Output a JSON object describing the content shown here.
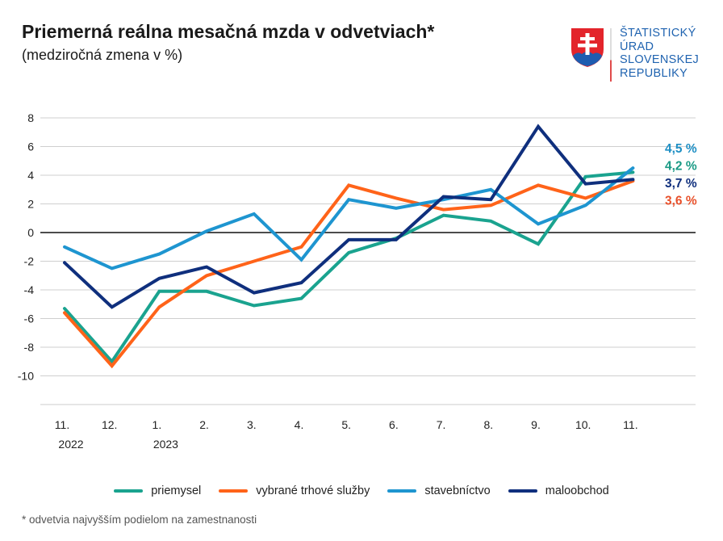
{
  "header": {
    "title": "Priemerná reálna mesačná mzda v odvetviach*",
    "subtitle": "(medziročná zmena v %)"
  },
  "logo": {
    "lines": [
      "ŠTATISTICKÝ",
      "ÚRAD",
      "SLOVENSKEJ",
      "REPUBLIKY"
    ]
  },
  "footnote": "* odvetvia najvyšším podielom na zamestnanosti",
  "chart_data": {
    "type": "line",
    "title": "Priemerná reálna mesačná mzda v odvetviach*",
    "ylabel": "medziročná zmena v %",
    "ylim": [
      -12,
      8
    ],
    "yticks": [
      8,
      6,
      4,
      2,
      0,
      -2,
      -4,
      -6,
      -8,
      -10
    ],
    "ytick_labels": [
      "8",
      "6",
      "4",
      "2",
      "0",
      "-2",
      "-4",
      "-6",
      "-8",
      "-10"
    ],
    "categories": [
      "11.",
      "12.",
      "1.",
      "2.",
      "3.",
      "4.",
      "5.",
      "6.",
      "7.",
      "8.",
      "9.",
      "10.",
      "11."
    ],
    "year_labels": [
      {
        "index": 0,
        "text": "2022"
      },
      {
        "index": 2,
        "text": "2023"
      }
    ],
    "legend_position": "bottom",
    "series": [
      {
        "name": "priemysel",
        "color": "#1aa38f",
        "values": [
          -5.3,
          -9.0,
          -4.1,
          -4.1,
          -5.1,
          -4.6,
          -1.4,
          -0.4,
          1.2,
          0.8,
          -0.8,
          3.9,
          4.2
        ],
        "end_label": "4,2 %"
      },
      {
        "name": "vybrané trhové služby",
        "color": "#ff6319",
        "values": [
          -5.6,
          -9.3,
          -5.2,
          -3.0,
          -2.0,
          -1.0,
          3.3,
          2.4,
          1.6,
          1.9,
          3.3,
          2.4,
          3.6
        ],
        "end_label": "3,6 %"
      },
      {
        "name": "stavebníctvo",
        "color": "#1e95d0",
        "values": [
          -1.0,
          -2.5,
          -1.5,
          0.1,
          1.3,
          -1.9,
          2.3,
          1.7,
          2.3,
          3.0,
          0.6,
          1.9,
          4.5
        ],
        "end_label": "4,5 %"
      },
      {
        "name": "maloobchod",
        "color": "#0f2f7d",
        "values": [
          -2.1,
          -5.2,
          -3.2,
          -2.4,
          -4.2,
          -3.5,
          -0.5,
          -0.5,
          2.5,
          2.3,
          7.4,
          3.4,
          3.7
        ],
        "end_label": "3,7 %"
      }
    ],
    "end_label_order": [
      2,
      0,
      3,
      1
    ],
    "end_label_colors": [
      "#1e8fc4",
      "#1a9a85",
      "#0f2f7d",
      "#e8502a"
    ]
  }
}
